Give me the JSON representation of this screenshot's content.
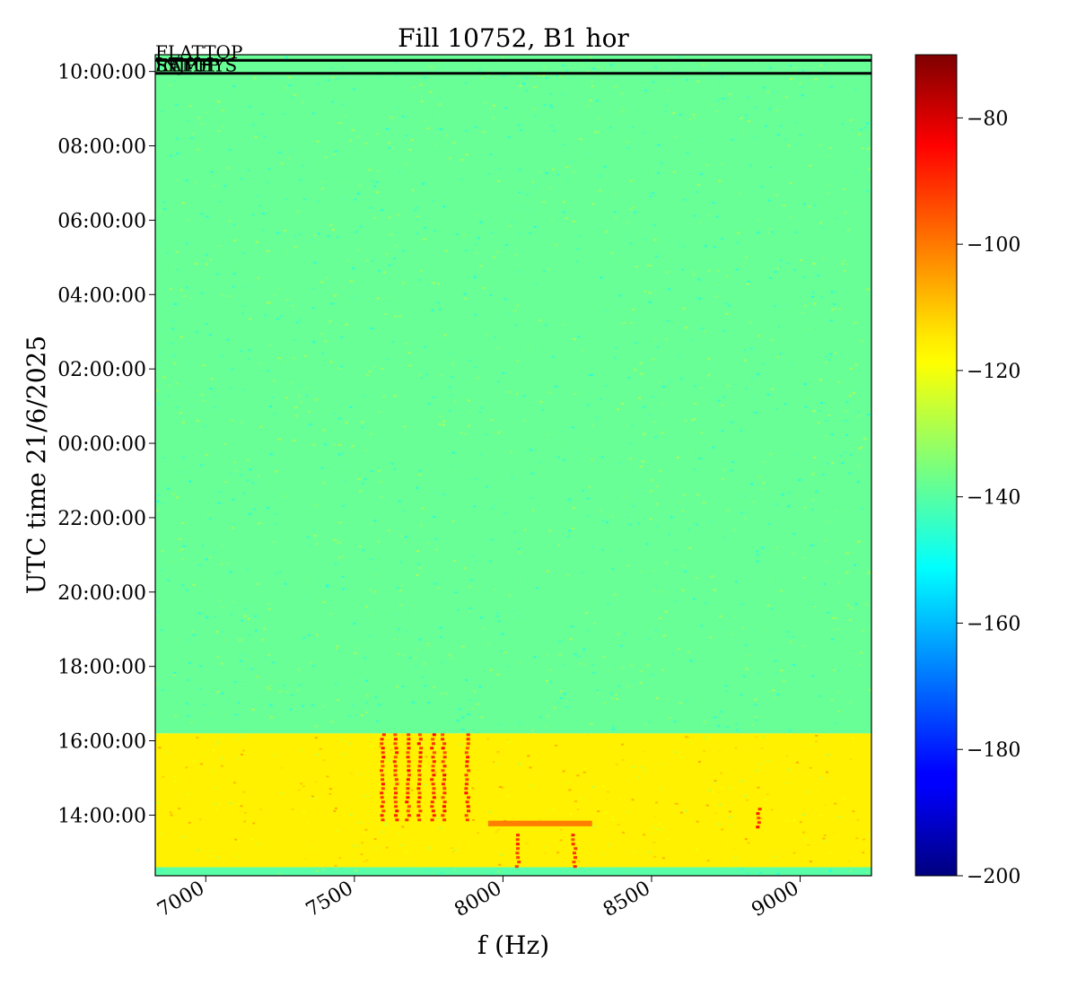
{
  "chart_data": {
    "type": "heatmap",
    "title": "Fill 10752, B1 hor",
    "xlabel": "f (Hz)",
    "ylabel": "UTC time 21/6/2025",
    "xlim": [
      6830,
      9240
    ],
    "x_ticks": [
      {
        "value": 7000,
        "label": "7000"
      },
      {
        "value": 7500,
        "label": "7500"
      },
      {
        "value": 8000,
        "label": "8000"
      },
      {
        "value": 8500,
        "label": "8500"
      },
      {
        "value": 9000,
        "label": "9000"
      }
    ],
    "ylim_hours": [
      12.37,
      34.45
    ],
    "y_ticks": [
      {
        "hours": 14,
        "label": "14:00:00"
      },
      {
        "hours": 16,
        "label": "16:00:00"
      },
      {
        "hours": 18,
        "label": "18:00:00"
      },
      {
        "hours": 20,
        "label": "20:00:00"
      },
      {
        "hours": 22,
        "label": "22:00:00"
      },
      {
        "hours": 24,
        "label": "00:00:00"
      },
      {
        "hours": 26,
        "label": "02:00:00"
      },
      {
        "hours": 28,
        "label": "04:00:00"
      },
      {
        "hours": 30,
        "label": "06:00:00"
      },
      {
        "hours": 32,
        "label": "08:00:00"
      },
      {
        "hours": 34,
        "label": "10:00:00"
      }
    ],
    "colorbar": {
      "range": [
        -200,
        -70
      ],
      "colormap": "jet",
      "ticks": [
        {
          "value": -80,
          "label": "−80"
        },
        {
          "value": -100,
          "label": "−100"
        },
        {
          "value": -120,
          "label": "−120"
        },
        {
          "value": -140,
          "label": "−140"
        },
        {
          "value": -160,
          "label": "−160"
        },
        {
          "value": -180,
          "label": "−180"
        },
        {
          "value": -200,
          "label": "−200"
        }
      ]
    },
    "regions": [
      {
        "from_hours": 12.37,
        "to_hours": 12.6,
        "level_db": -140
      },
      {
        "from_hours": 12.6,
        "to_hours": 16.2,
        "level_db": -117
      },
      {
        "from_hours": 16.2,
        "to_hours": 34.45,
        "level_db": -138
      }
    ],
    "hot_lines": [
      {
        "freq": 7595,
        "from_hours": 13.9,
        "to_hours": 16.2
      },
      {
        "freq": 7640,
        "from_hours": 13.9,
        "to_hours": 16.2
      },
      {
        "freq": 7680,
        "from_hours": 13.9,
        "to_hours": 16.2
      },
      {
        "freq": 7720,
        "from_hours": 13.9,
        "to_hours": 16.2
      },
      {
        "freq": 7765,
        "from_hours": 13.9,
        "to_hours": 16.2
      },
      {
        "freq": 7800,
        "from_hours": 13.9,
        "to_hours": 16.2
      },
      {
        "freq": 7880,
        "from_hours": 13.9,
        "to_hours": 16.2
      },
      {
        "freq": 8050,
        "from_hours": 12.6,
        "to_hours": 13.5
      },
      {
        "freq": 8240,
        "from_hours": 12.6,
        "to_hours": 13.5
      },
      {
        "freq": 8860,
        "from_hours": 13.7,
        "to_hours": 14.2
      }
    ],
    "hot_band": {
      "from_freq": 7950,
      "to_freq": 8300,
      "from_hours": 13.7,
      "to_hours": 13.85
    },
    "markers": [
      {
        "label": "FLATTOP",
        "hours": 34.3
      },
      {
        "label": "RAMP",
        "hours": 33.95
      },
      {
        "label": "INJPHYS",
        "hours": 33.95
      },
      {
        "label": "SETUP",
        "hours": 33.95
      }
    ]
  }
}
